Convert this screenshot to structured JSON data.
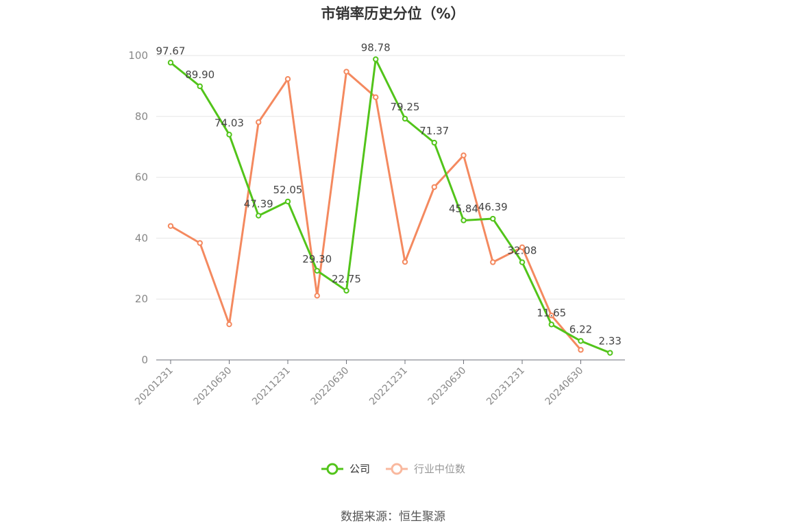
{
  "chart_data": {
    "type": "line",
    "title": "市销率历史分位（%）",
    "x": [
      "20201231",
      "20210331",
      "20210630",
      "20210930",
      "20211231",
      "20220331",
      "20220630",
      "20220930",
      "20221231",
      "20230331",
      "20230630",
      "20230930",
      "20231231",
      "20240331",
      "20240630",
      "20240930"
    ],
    "x_tick_labels": [
      "20201231",
      "20210630",
      "20211231",
      "20220630",
      "20221231",
      "20230630",
      "20231231",
      "20240630"
    ],
    "ylim": [
      0,
      100
    ],
    "y_ticks": [
      0,
      20,
      40,
      60,
      80,
      100
    ],
    "grid": true,
    "legend_position": "bottom-center",
    "series": [
      {
        "name": "公司",
        "color": "#52c41a",
        "values": [
          97.67,
          89.9,
          74.03,
          47.39,
          52.05,
          29.3,
          22.75,
          98.78,
          79.25,
          71.37,
          45.84,
          46.39,
          32.08,
          11.65,
          6.22,
          2.33
        ],
        "labels": [
          "97.67",
          "89.90",
          "74.03",
          "47.39",
          "52.05",
          "29.30",
          "22.75",
          "98.78",
          "79.25",
          "71.37",
          "45.84",
          "46.39",
          "32.08",
          "11.65",
          "6.22",
          "2.33"
        ]
      },
      {
        "name": "行业中位数",
        "color": "#f4895f",
        "values": [
          44.0,
          38.4,
          11.7,
          78.1,
          92.3,
          21.1,
          94.7,
          86.3,
          32.2,
          56.8,
          67.2,
          32.1,
          37.0,
          14.6,
          3.3,
          null
        ]
      }
    ],
    "source": "数据来源：恒生聚源"
  }
}
